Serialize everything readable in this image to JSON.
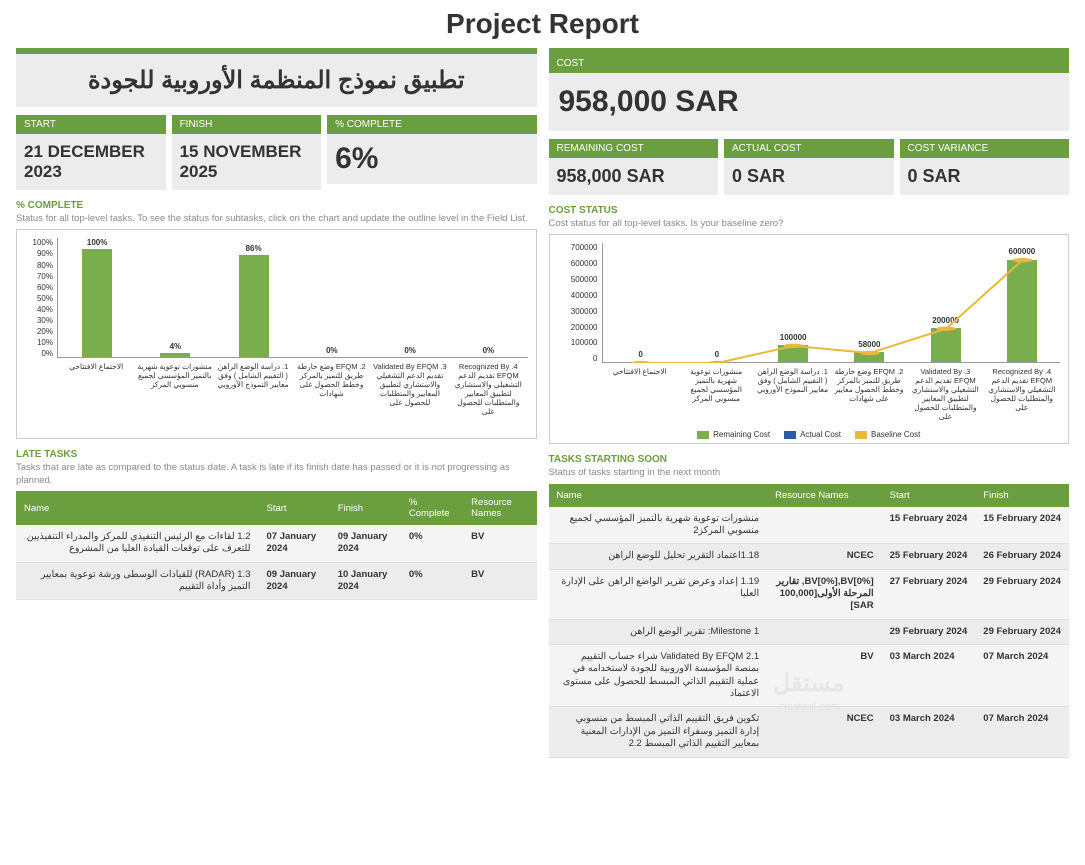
{
  "title": "Project Report",
  "project_name": "تطبيق نموذج المنظمة الأوروبية للجودة",
  "left_metrics": {
    "start": {
      "label": "START",
      "value": "21 DECEMBER 2023"
    },
    "finish": {
      "label": "FINISH",
      "value": "15 NOVEMBER 2025"
    },
    "complete": {
      "label": "% COMPLETE",
      "value": "6%"
    }
  },
  "cost": {
    "label": "COST",
    "value": "958,000 SAR"
  },
  "cost_metrics": {
    "remaining": {
      "label": "REMAINING COST",
      "value": "958,000 SAR"
    },
    "actual": {
      "label": "ACTUAL COST",
      "value": "0 SAR"
    },
    "variance": {
      "label": "COST VARIANCE",
      "value": "0 SAR"
    }
  },
  "complete_chart": {
    "title": "% COMPLETE",
    "desc": "Status for all top-level tasks. To see the status for subtasks, click on the chart and update the outline level in the Field List.",
    "type": "bar",
    "ymax": 100,
    "yticks": [
      "100%",
      "90%",
      "80%",
      "70%",
      "60%",
      "50%",
      "40%",
      "30%",
      "20%",
      "10%",
      "0%"
    ],
    "bars": [
      {
        "label": "الاجتماع الافتتاحي",
        "value": 100,
        "text": "100%"
      },
      {
        "label": "منشورات توعوية شهرية بالتميز المؤسسي لجميع منسوبي المركز",
        "value": 4,
        "text": "4%"
      },
      {
        "label": "1. دراسة الوضع الراهن ( التقييم الشامل ) وفق معايير النموذج الأوروبي",
        "value": 86,
        "text": "86%"
      },
      {
        "label": "2. EFQM وضع خارطة طريق للتميز بالمركز وخطط الحصول على شهادات",
        "value": 0,
        "text": "0%"
      },
      {
        "label": "3. Validated By EFQM تقديم الدعم التشغيلي والاستشاري لتطبيق المعايير والمتطلبات للحصول على",
        "value": 0,
        "text": "0%"
      },
      {
        "label": "4. Recognized By EFQM تقديم الدعم التشغيلي والاستشاري لتطبيق المعايير والمتطلبات للحصول على",
        "value": 0,
        "text": "0%"
      }
    ],
    "bar_color": "#7aad4c"
  },
  "cost_chart": {
    "title": "COST STATUS",
    "desc": "Cost status for all top-level tasks. Is your baseline zero?",
    "type": "bar+line",
    "ymax": 700000,
    "yticks": [
      "0",
      "100000",
      "200000",
      "300000",
      "400000",
      "500000",
      "600000",
      "700000"
    ],
    "categories": [
      "الاجتماع الافتتاحي",
      "منشورات توعوية شهرية بالتميز المؤسسي لجميع منسوبي المركز",
      "1. دراسة الوضع الراهن ( التقييم الشامل ) وفق معايير النموذج الأوروبي",
      "2. EFQM وضع خارطة طريق للتميز بالمركز وخطط الحصول معايير على شهادات",
      "3. Validated By EFQM تقديم الدعم التشغيلي والاستشاري لتطبيق المعايير والمتطلبات للحصول على",
      "4. Recognized By EFQM تقديم الدعم التشغيلي والاستشاري والمتطلبات للحصول على"
    ],
    "remaining": [
      0,
      0,
      100000,
      58000,
      200000,
      600000
    ],
    "baseline": [
      0,
      0,
      100000,
      58000,
      200000,
      600000
    ],
    "point_labels": [
      "0",
      "0",
      "100000",
      "58000",
      "200000",
      "600000"
    ],
    "colors": {
      "remaining": "#7aad4c",
      "actual": "#2e5aa7",
      "baseline": "#e8b93e"
    },
    "legend": [
      "Remaining Cost",
      "Actual Cost",
      "Baseline Cost"
    ]
  },
  "late_tasks": {
    "title": "LATE TASKS",
    "desc": "Tasks that are late as compared to the status date. A task is late if its finish date has passed or it is not progressing as planned.",
    "columns": [
      "Name",
      "Start",
      "Finish",
      "% Complete",
      "Resource Names"
    ],
    "rows": [
      [
        "1.2 لقاءات مع الرئيس التنفيذي للمركز والمدراء التنفيذيين للتعرف على توقعات القيادة العليا من المشروع",
        "07 January 2024",
        "09 January 2024",
        "0%",
        "BV"
      ],
      [
        "1.3 (RADAR) للقيادات الوسطى ورشة توعوية بمعايير التميز وأداة التقييم",
        "09 January 2024",
        "10 January 2024",
        "0%",
        "BV"
      ]
    ]
  },
  "starting_soon": {
    "title": "TASKS STARTING SOON",
    "desc": "Status of tasks starting in the next month",
    "columns": [
      "Name",
      "Resource Names",
      "Start",
      "Finish"
    ],
    "rows": [
      [
        "منشورات توعوية شهرية بالتميز المؤسسي لجميع منسوبي المركز2",
        "",
        "15 February 2024",
        "15 February 2024"
      ],
      [
        "1.18اعتماد التقرير تحليل للوضع الراهن",
        "NCEC",
        "25 February 2024",
        "26 February 2024"
      ],
      [
        "1.19 إعداد وعرض تقرير الواضع الراهن على الإدارة العليا",
        "BV[0%],BV[0%], تقارير المرحلة الأولى[100,000 SAR]",
        "27 February 2024",
        "29 February 2024"
      ],
      [
        "Milestone 1: تقرير الوضع الراهن",
        "",
        "29 February 2024",
        "29 February 2024"
      ],
      [
        "2.1 Validated By EFQM شراء حساب التقييم بمنصة المؤسسة الاوروبية للجودة لاستخدامه في عملية التقييم الذاتي المبسط للحصول على مستوى الاعتماد",
        "BV",
        "03 March 2024",
        "07 March 2024"
      ],
      [
        "تكوين فريق التقييم الذاتي المبسط من منسوبي إدارة التميز وسفراء التميز من الإدارات المعنية بمعايير التقييم الذاتي المبسط 2.2",
        "NCEC",
        "03 March 2024",
        "07 March 2024"
      ]
    ]
  },
  "watermark": {
    "main": "مستقل",
    "sub": "mostaql.com"
  }
}
